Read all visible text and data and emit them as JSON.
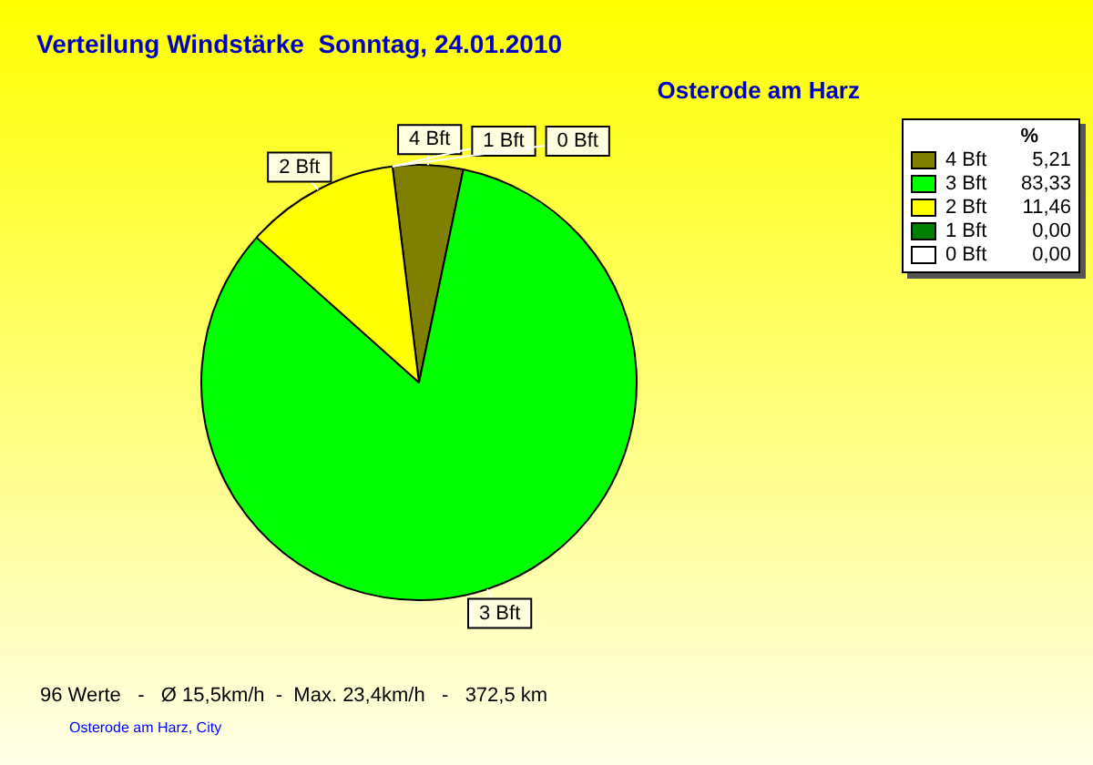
{
  "chart_data": {
    "type": "pie",
    "title": "Verteilung Windstärke  Sonntag, 24.01.2010",
    "subtitle": "Osterode am Harz",
    "categories": [
      "4 Bft",
      "3 Bft",
      "2 Bft",
      "1 Bft",
      "0 Bft"
    ],
    "values": [
      5.21,
      83.33,
      11.46,
      0,
      0
    ],
    "value_labels": [
      "5,21",
      "83,33",
      "11,46",
      "0,00",
      "0,00"
    ],
    "colors": [
      "#808000",
      "#00ff00",
      "#ffff00",
      "#008000",
      "#ffffff"
    ],
    "legend": "top right",
    "legend_title": "%",
    "annotations": [
      "96 Werte   -   Ø 15,5km/h  -  Max. 23,4km/h   -   372,5 km",
      "Osterode am Harz, City"
    ]
  }
}
